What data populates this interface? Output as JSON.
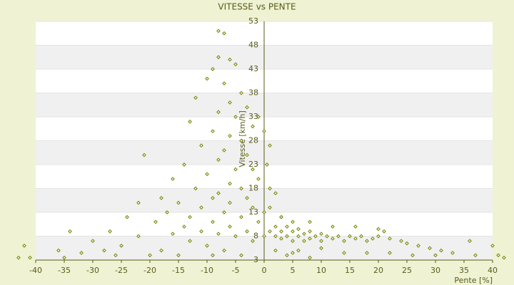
{
  "chart_data": {
    "type": "scatter",
    "title": "VITESSE vs PENTE",
    "x_label": "Pente [%]",
    "y_label": "Vitesse [km/h]",
    "x": [
      -8,
      -7,
      -6,
      -8,
      -9,
      -5,
      -10,
      -7,
      -4,
      -12,
      -6,
      -3,
      -8,
      -5,
      -13,
      -2,
      -9,
      -6,
      -4,
      -11,
      -7,
      1,
      -21,
      -3,
      -8,
      -14,
      -5,
      -2,
      -10,
      -16,
      -6,
      -1,
      -12,
      -4,
      -8,
      2,
      -18,
      -9,
      -3,
      -15,
      -6,
      -22,
      -11,
      -2,
      -17,
      -7,
      1,
      -13,
      -4,
      -24,
      -9,
      3,
      -19,
      -1,
      -14,
      -6,
      -27,
      -11,
      -3,
      -34,
      -16,
      -8,
      -22,
      -5,
      -30,
      -13,
      -2,
      -42,
      -25,
      -10,
      -36,
      -28,
      -18,
      -7,
      -32,
      -43,
      -41,
      -35,
      -26,
      -20,
      -15,
      -9,
      -4,
      0,
      1,
      2,
      2,
      3,
      3,
      4,
      4,
      5,
      5,
      6,
      6,
      7,
      7,
      8,
      8,
      9,
      10,
      10,
      11,
      12,
      13,
      14,
      15,
      16,
      17,
      18,
      19,
      20,
      21,
      22,
      24,
      25,
      27,
      29,
      31,
      33,
      36,
      37,
      40,
      41,
      42,
      3,
      5,
      8,
      12,
      16,
      20,
      2,
      6,
      10,
      14,
      18,
      22,
      26,
      30,
      4,
      0,
      1,
      0.5,
      0,
      -1,
      5,
      8
    ],
    "values": [
      51,
      50.5,
      45,
      45.5,
      43,
      44,
      41,
      40,
      38,
      37,
      36,
      35,
      34,
      33,
      32,
      31,
      30,
      29,
      28,
      27,
      26,
      27,
      25,
      25,
      24,
      23,
      22,
      22,
      21,
      20,
      19,
      20,
      18,
      18,
      17,
      17,
      16,
      16,
      16,
      15,
      15,
      15,
      14,
      14,
      13,
      13,
      14,
      12,
      12,
      12,
      11,
      12,
      11,
      11,
      10,
      10,
      9,
      9,
      9,
      9,
      8.5,
      8.5,
      8,
      8,
      7,
      7,
      7,
      6,
      6,
      6,
      5,
      5,
      5,
      5,
      4.5,
      3.5,
      3.5,
      3.5,
      4,
      4,
      4,
      4,
      4,
      8,
      9,
      10,
      8,
      9,
      7.5,
      10,
      8,
      9,
      7,
      9.5,
      8,
      8.5,
      7,
      9,
      7.5,
      8,
      8.5,
      7,
      8,
      7.5,
      8,
      7,
      8,
      7.5,
      8,
      7,
      7.5,
      8,
      9,
      7.5,
      7,
      6.5,
      6,
      5.5,
      5,
      4.5,
      7,
      4,
      6,
      4,
      3.5,
      12,
      11,
      11,
      10,
      10,
      9.5,
      5,
      5,
      5.5,
      4.5,
      4.5,
      4.5,
      4,
      4,
      4,
      13,
      18,
      23,
      30,
      33,
      4.5,
      3.5
    ],
    "color": "#6b7a00",
    "xlim": [
      -40,
      40
    ],
    "xticks": [
      -40,
      -35,
      -30,
      -25,
      -20,
      -15,
      -10,
      -5,
      0,
      5,
      10,
      15,
      20,
      25,
      30,
      35,
      40
    ],
    "ylim": [
      3,
      53
    ],
    "yticks": [
      3,
      8,
      13,
      18,
      23,
      28,
      33,
      38,
      43,
      48,
      53
    ],
    "grid": true
  }
}
